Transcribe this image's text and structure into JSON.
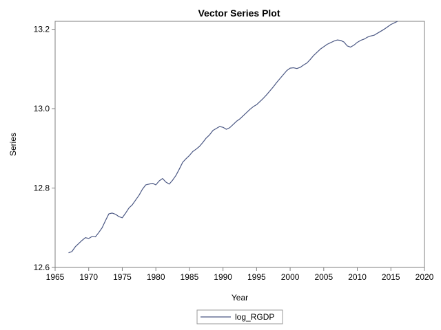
{
  "chart_data": {
    "type": "line",
    "title": "Vector Series Plot",
    "xlabel": "Year",
    "ylabel": "Series",
    "xlim": [
      1965,
      2020
    ],
    "ylim": [
      12.6,
      13.22
    ],
    "x_ticks": [
      "1965",
      "1970",
      "1975",
      "1980",
      "1985",
      "1990",
      "1995",
      "2000",
      "2005",
      "2010",
      "2015",
      "2020"
    ],
    "y_ticks": [
      "12.6",
      "12.8",
      "13.0",
      "13.2"
    ],
    "grid": false,
    "legend_position": "bottom",
    "series": [
      {
        "name": "log_RGDP",
        "color": "#4a5783",
        "x": [
          1967.0,
          1967.5,
          1968.0,
          1968.5,
          1969.0,
          1969.5,
          1970.0,
          1970.5,
          1971.0,
          1971.5,
          1972.0,
          1972.5,
          1973.0,
          1973.5,
          1974.0,
          1974.5,
          1975.0,
          1975.5,
          1976.0,
          1976.5,
          1977.0,
          1977.5,
          1978.0,
          1978.5,
          1979.0,
          1979.5,
          1980.0,
          1980.5,
          1981.0,
          1981.5,
          1982.0,
          1982.5,
          1983.0,
          1983.5,
          1984.0,
          1984.5,
          1985.0,
          1985.5,
          1986.0,
          1986.5,
          1987.0,
          1987.5,
          1988.0,
          1988.5,
          1989.0,
          1989.5,
          1990.0,
          1990.5,
          1991.0,
          1991.5,
          1992.0,
          1992.5,
          1993.0,
          1993.5,
          1994.0,
          1994.5,
          1995.0,
          1995.5,
          1996.0,
          1996.5,
          1997.0,
          1997.5,
          1998.0,
          1998.5,
          1999.0,
          1999.5,
          2000.0,
          2000.5,
          2001.0,
          2001.5,
          2002.0,
          2002.5,
          2003.0,
          2003.5,
          2004.0,
          2004.5,
          2005.0,
          2005.5,
          2006.0,
          2006.5,
          2007.0,
          2007.5,
          2008.0,
          2008.5,
          2009.0,
          2009.5,
          2010.0,
          2010.5,
          2011.0,
          2011.5,
          2012.0,
          2012.5,
          2013.0,
          2013.5,
          2014.0,
          2014.5,
          2015.0,
          2015.5,
          2016.0
        ],
        "values": [
          12.637,
          12.64,
          12.652,
          12.66,
          12.668,
          12.675,
          12.673,
          12.678,
          12.677,
          12.688,
          12.7,
          12.718,
          12.735,
          12.737,
          12.734,
          12.728,
          12.725,
          12.737,
          12.75,
          12.758,
          12.77,
          12.782,
          12.797,
          12.808,
          12.81,
          12.812,
          12.808,
          12.818,
          12.824,
          12.815,
          12.81,
          12.82,
          12.832,
          12.848,
          12.865,
          12.874,
          12.882,
          12.892,
          12.898,
          12.905,
          12.915,
          12.926,
          12.934,
          12.945,
          12.95,
          12.955,
          12.953,
          12.948,
          12.952,
          12.96,
          12.968,
          12.974,
          12.982,
          12.99,
          12.998,
          13.005,
          13.01,
          13.018,
          13.026,
          13.035,
          13.045,
          13.055,
          13.066,
          13.076,
          13.086,
          13.096,
          13.102,
          13.103,
          13.101,
          13.104,
          13.11,
          13.115,
          13.124,
          13.134,
          13.142,
          13.15,
          13.156,
          13.162,
          13.166,
          13.17,
          13.173,
          13.172,
          13.168,
          13.158,
          13.155,
          13.16,
          13.167,
          13.172,
          13.175,
          13.18,
          13.183,
          13.185,
          13.19,
          13.195,
          13.2,
          13.206,
          13.212,
          13.216,
          13.22
        ]
      }
    ]
  }
}
